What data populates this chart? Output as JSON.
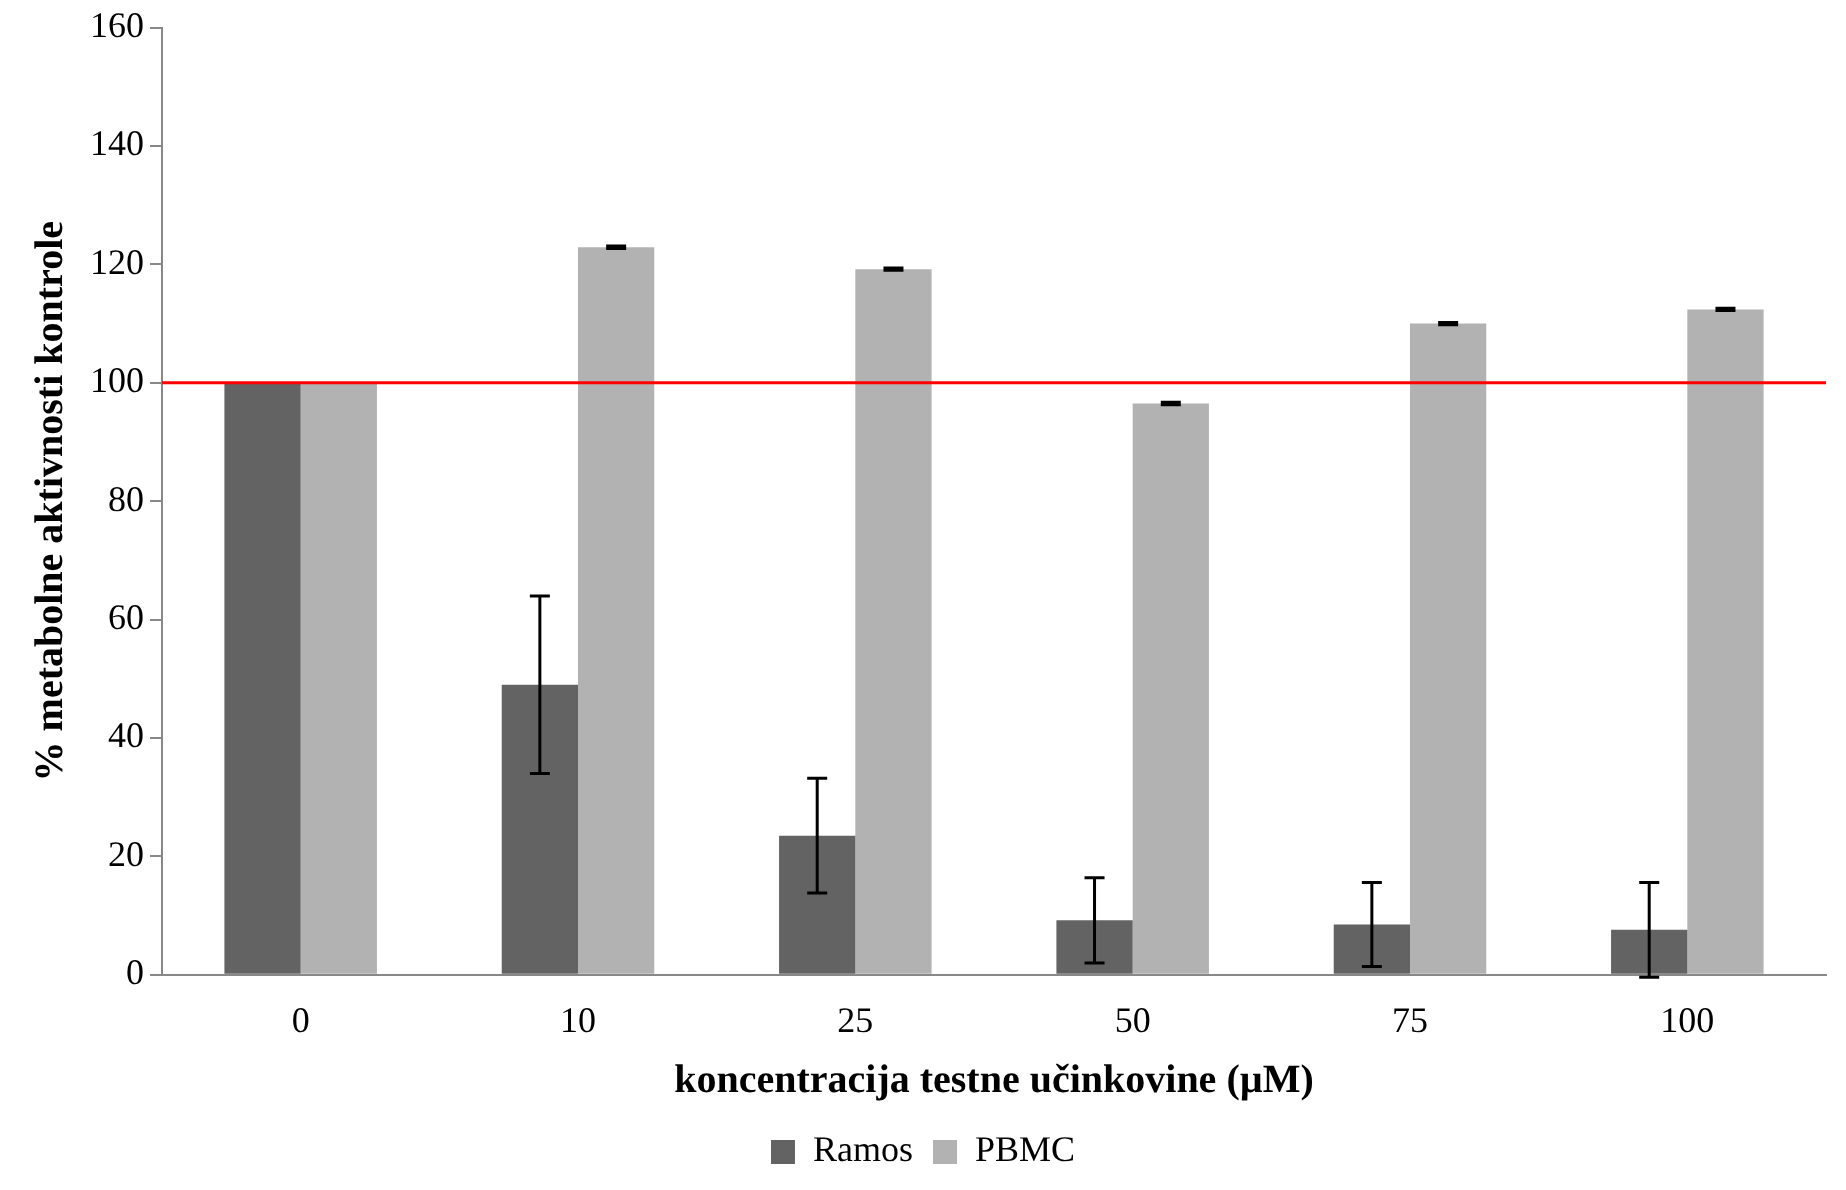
{
  "chart_data": {
    "type": "bar",
    "xlabel": "koncentracija testne učinkovine (µM)",
    "ylabel": "% metabolne aktivnosti kontrole",
    "categories": [
      "0",
      "10",
      "25",
      "50",
      "75",
      "100"
    ],
    "series": [
      {
        "name": "Ramos",
        "color": "#636363",
        "values": [
          100,
          49,
          23.5,
          9.2,
          8.5,
          7.6
        ],
        "errors": [
          null,
          15,
          9.7,
          7.2,
          7.1,
          8
        ]
      },
      {
        "name": "PBMC",
        "color": "#b2b2b2",
        "values": [
          100,
          122.9,
          119.2,
          96.5,
          110,
          112.4
        ],
        "errors": [
          null,
          0.2,
          0.2,
          0.2,
          0.2,
          0.2
        ]
      }
    ],
    "ylim": [
      0,
      160
    ],
    "yticks": [
      0,
      20,
      40,
      60,
      80,
      100,
      120,
      140,
      160
    ],
    "grid": false,
    "legend": "bottom",
    "ref_lines": [
      {
        "axis": "y",
        "value": 100,
        "color": "#ff0000"
      }
    ]
  }
}
